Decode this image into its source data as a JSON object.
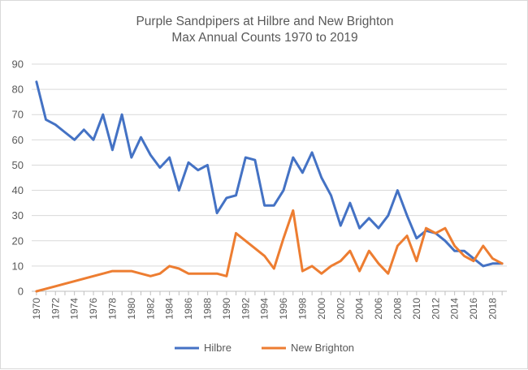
{
  "chart_data": {
    "type": "line",
    "title": [
      "Purple Sandpipers at Hilbre and New Brighton",
      "Max Annual Counts 1970 to 2019"
    ],
    "xlabel": "",
    "ylabel": "",
    "ylim": [
      0,
      90
    ],
    "y_ticks": [
      "0",
      "10",
      "20",
      "30",
      "40",
      "50",
      "60",
      "70",
      "80",
      "90"
    ],
    "x_tick_labels": [
      "1970",
      "1972",
      "1974",
      "1976",
      "1978",
      "1980",
      "1982",
      "1984",
      "1986",
      "1988",
      "1990",
      "1992",
      "1994",
      "1996",
      "1998",
      "2000",
      "2002",
      "2004",
      "2006",
      "2008",
      "2010",
      "2012",
      "2014",
      "2016",
      "2018"
    ],
    "x": [
      1970,
      1971,
      1972,
      1973,
      1974,
      1975,
      1976,
      1977,
      1978,
      1979,
      1980,
      1981,
      1982,
      1983,
      1984,
      1985,
      1986,
      1987,
      1988,
      1989,
      1990,
      1991,
      1992,
      1993,
      1994,
      1995,
      1996,
      1997,
      1998,
      1999,
      2000,
      2001,
      2002,
      2003,
      2004,
      2005,
      2006,
      2007,
      2008,
      2009,
      2010,
      2011,
      2012,
      2013,
      2014,
      2015,
      2016,
      2017,
      2018,
      2019
    ],
    "grid": true,
    "legend_position": "bottom",
    "series": [
      {
        "name": "Hilbre",
        "color": "#4472C4",
        "values": [
          83,
          68,
          66,
          63,
          60,
          64,
          60,
          70,
          56,
          70,
          53,
          61,
          54,
          49,
          53,
          40,
          51,
          48,
          50,
          31,
          37,
          38,
          53,
          52,
          34,
          34,
          40,
          53,
          47,
          55,
          45,
          38,
          26,
          35,
          25,
          29,
          25,
          30,
          40,
          30,
          21,
          24,
          23,
          20,
          16,
          16,
          13,
          10,
          11,
          11
        ]
      },
      {
        "name": "New Brighton",
        "color": "#ED7D31",
        "values": [
          0,
          1,
          2,
          3,
          4,
          5,
          6,
          7,
          8,
          8,
          8,
          7,
          6,
          7,
          10,
          9,
          7,
          7,
          7,
          7,
          6,
          23,
          20,
          17,
          14,
          9,
          21,
          32,
          8,
          10,
          7,
          10,
          12,
          16,
          8,
          16,
          11,
          7,
          18,
          22,
          12,
          25,
          23,
          25,
          18,
          14,
          12,
          18,
          13,
          11
        ]
      }
    ]
  }
}
